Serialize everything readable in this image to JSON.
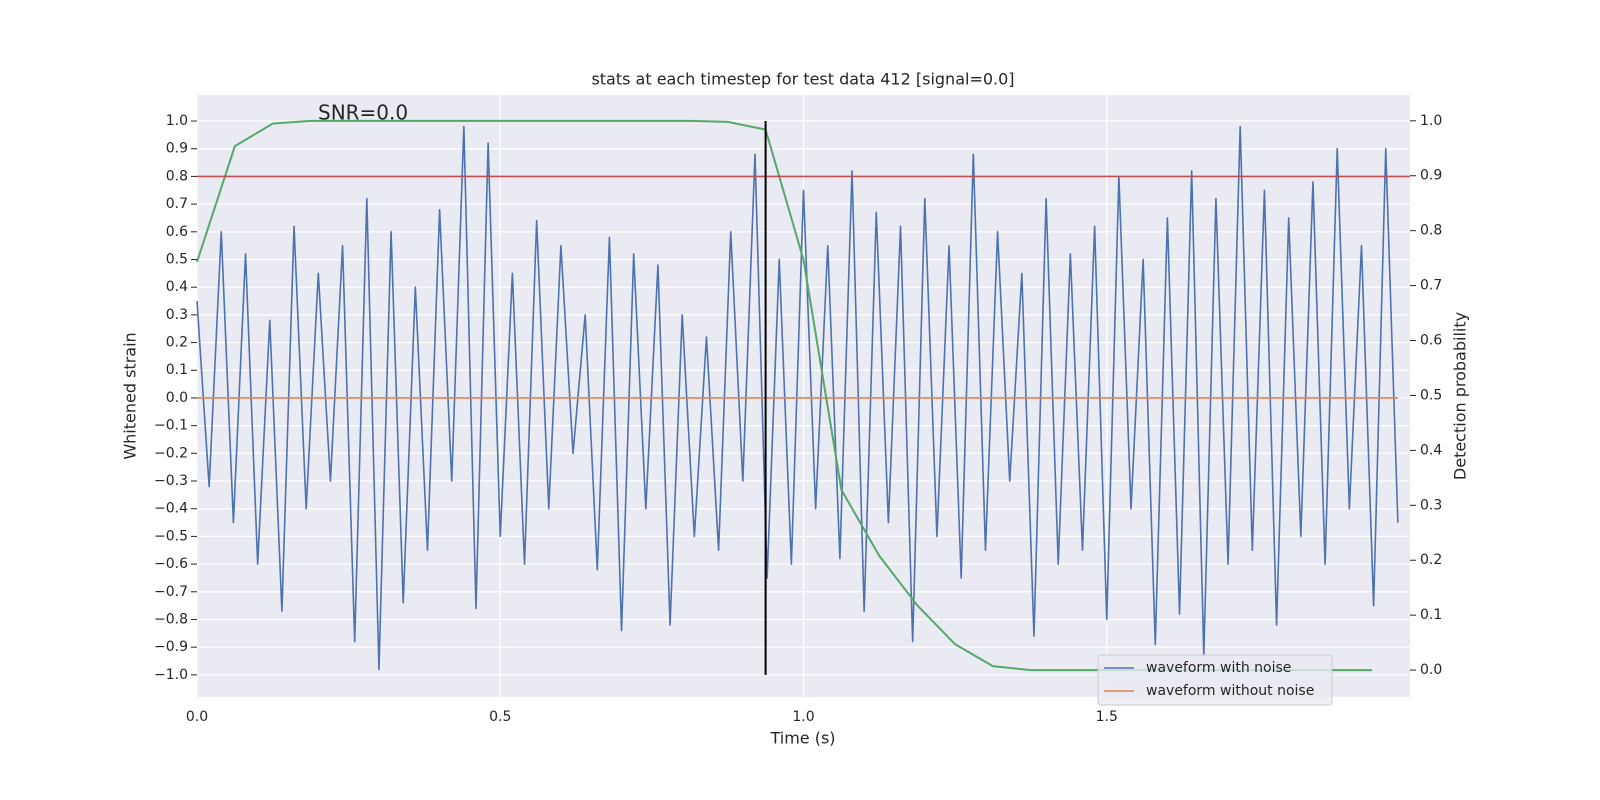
{
  "chart_data": {
    "type": "line",
    "title": "stats at each timestep for test data 412 [signal=0.0]",
    "annotation": "SNR=0.0",
    "xlabel": "Time (s)",
    "ylabel": "Whitened strain",
    "y2label": "Detection probability",
    "xlim": [
      0,
      2.0
    ],
    "ylim": [
      -1.08,
      1.094
    ],
    "y2lim": [
      -0.049,
      1.047
    ],
    "xticks": [
      {
        "value": 0,
        "label": "0.0"
      },
      {
        "value": 0.5,
        "label": "0.5"
      },
      {
        "value": 1,
        "label": "1.0"
      },
      {
        "value": 1.5,
        "label": "1.5"
      }
    ],
    "yticks": [
      {
        "value": -1,
        "label": "−1.0"
      },
      {
        "value": -0.9,
        "label": "−0.9"
      },
      {
        "value": -0.8,
        "label": "−0.8"
      },
      {
        "value": -0.7,
        "label": "−0.7"
      },
      {
        "value": -0.6,
        "label": "−0.6"
      },
      {
        "value": -0.5,
        "label": "−0.5"
      },
      {
        "value": -0.4,
        "label": "−0.4"
      },
      {
        "value": -0.3,
        "label": "−0.3"
      },
      {
        "value": -0.2,
        "label": "−0.2"
      },
      {
        "value": -0.1,
        "label": "−0.1"
      },
      {
        "value": 0,
        "label": "0.0"
      },
      {
        "value": 0.1,
        "label": "0.1"
      },
      {
        "value": 0.2,
        "label": "0.2"
      },
      {
        "value": 0.3,
        "label": "0.3"
      },
      {
        "value": 0.4,
        "label": "0.4"
      },
      {
        "value": 0.5,
        "label": "0.5"
      },
      {
        "value": 0.6,
        "label": "0.6"
      },
      {
        "value": 0.7,
        "label": "0.7"
      },
      {
        "value": 0.8,
        "label": "0.8"
      },
      {
        "value": 0.9,
        "label": "0.9"
      },
      {
        "value": 1,
        "label": "1.0"
      }
    ],
    "y2ticks": [
      {
        "value": 0,
        "label": "0.0"
      },
      {
        "value": 0.1,
        "label": "0.1"
      },
      {
        "value": 0.2,
        "label": "0.2"
      },
      {
        "value": 0.3,
        "label": "0.3"
      },
      {
        "value": 0.4,
        "label": "0.4"
      },
      {
        "value": 0.5,
        "label": "0.5"
      },
      {
        "value": 0.6,
        "label": "0.6"
      },
      {
        "value": 0.7,
        "label": "0.7"
      },
      {
        "value": 0.8,
        "label": "0.8"
      },
      {
        "value": 0.9,
        "label": "0.9"
      },
      {
        "value": 1,
        "label": "1.0"
      }
    ],
    "grid": true,
    "legend": "lower right",
    "series": [
      {
        "name": "waveform with noise",
        "color": "#4c72b0",
        "x": [
          0,
          0.02,
          0.04,
          0.06,
          0.08,
          0.1,
          0.12,
          0.14,
          0.16,
          0.18,
          0.2,
          0.22,
          0.24,
          0.26,
          0.28,
          0.3,
          0.32,
          0.34,
          0.36,
          0.38,
          0.4,
          0.42,
          0.44,
          0.46,
          0.48,
          0.5,
          0.52,
          0.54,
          0.56,
          0.58,
          0.6,
          0.62,
          0.64,
          0.66,
          0.68,
          0.7,
          0.72,
          0.74,
          0.76,
          0.78,
          0.8,
          0.82,
          0.84,
          0.86,
          0.88,
          0.9,
          0.92,
          0.94,
          0.96,
          0.98,
          1,
          1.02,
          1.04,
          1.06,
          1.08,
          1.1,
          1.12,
          1.14,
          1.16,
          1.18,
          1.2,
          1.22,
          1.24,
          1.26,
          1.28,
          1.3,
          1.32,
          1.34,
          1.36,
          1.38,
          1.4,
          1.42,
          1.44,
          1.46,
          1.48,
          1.5,
          1.52,
          1.54,
          1.56,
          1.58,
          1.6,
          1.62,
          1.64,
          1.66,
          1.68,
          1.7,
          1.72,
          1.74,
          1.76,
          1.78,
          1.8,
          1.82,
          1.84,
          1.86,
          1.88,
          1.9,
          1.92,
          1.94,
          1.96,
          1.98
        ],
        "values": [
          0.35,
          -0.32,
          0.6,
          -0.45,
          0.52,
          -0.6,
          0.28,
          -0.77,
          0.62,
          -0.4,
          0.45,
          -0.3,
          0.55,
          -0.88,
          0.72,
          -0.98,
          0.6,
          -0.74,
          0.4,
          -0.55,
          0.68,
          -0.3,
          0.98,
          -0.76,
          0.92,
          -0.5,
          0.45,
          -0.6,
          0.64,
          -0.4,
          0.55,
          -0.2,
          0.3,
          -0.62,
          0.58,
          -0.84,
          0.52,
          -0.4,
          0.48,
          -0.82,
          0.3,
          -0.5,
          0.22,
          -0.55,
          0.6,
          -0.3,
          0.88,
          -0.65,
          0.5,
          -0.6,
          0.75,
          -0.4,
          0.55,
          -0.58,
          0.82,
          -0.77,
          0.67,
          -0.45,
          0.62,
          -0.88,
          0.72,
          -0.5,
          0.55,
          -0.65,
          0.88,
          -0.55,
          0.6,
          -0.3,
          0.45,
          -0.86,
          0.72,
          -0.6,
          0.52,
          -0.55,
          0.62,
          -0.8,
          0.8,
          -0.4,
          0.5,
          -0.89,
          0.65,
          -0.78,
          0.82,
          -0.93,
          0.72,
          -0.6,
          0.98,
          -0.55,
          0.75,
          -0.82,
          0.65,
          -0.5,
          0.78,
          -0.6,
          0.9,
          -0.4,
          0.55,
          -0.75,
          0.9,
          -0.45
        ]
      },
      {
        "name": "waveform without noise",
        "color": "#dd8452",
        "x": [
          0,
          1.98
        ],
        "values": [
          0,
          0
        ]
      },
      {
        "color": "#55a868",
        "axis": "y2",
        "x": [
          0,
          0.0625,
          0.125,
          0.1875,
          0.25,
          0.3125,
          0.375,
          0.4375,
          0.5,
          0.5625,
          0.625,
          0.6875,
          0.75,
          0.8125,
          0.875,
          0.9375,
          1,
          1.0625,
          1.125,
          1.1875,
          1.25,
          1.3125,
          1.375,
          1.4375,
          1.5,
          1.5625,
          1.625,
          1.6875,
          1.75,
          1.8125,
          1.875,
          1.9375
        ],
        "values": [
          0.743,
          0.954,
          0.995,
          1,
          1,
          1,
          1,
          1,
          1,
          1,
          1,
          1,
          1,
          1,
          0.998,
          0.984,
          0.747,
          0.328,
          0.208,
          0.118,
          0.047,
          0.007,
          0,
          0,
          0,
          0,
          0,
          0,
          0,
          0,
          0,
          0
        ]
      }
    ],
    "hlines": [
      {
        "y": 0.8,
        "color": "#c44e52"
      }
    ],
    "vlines": [
      {
        "x": 0.9375,
        "ymin": -1,
        "ymax": 1,
        "color": "#000000"
      }
    ]
  }
}
